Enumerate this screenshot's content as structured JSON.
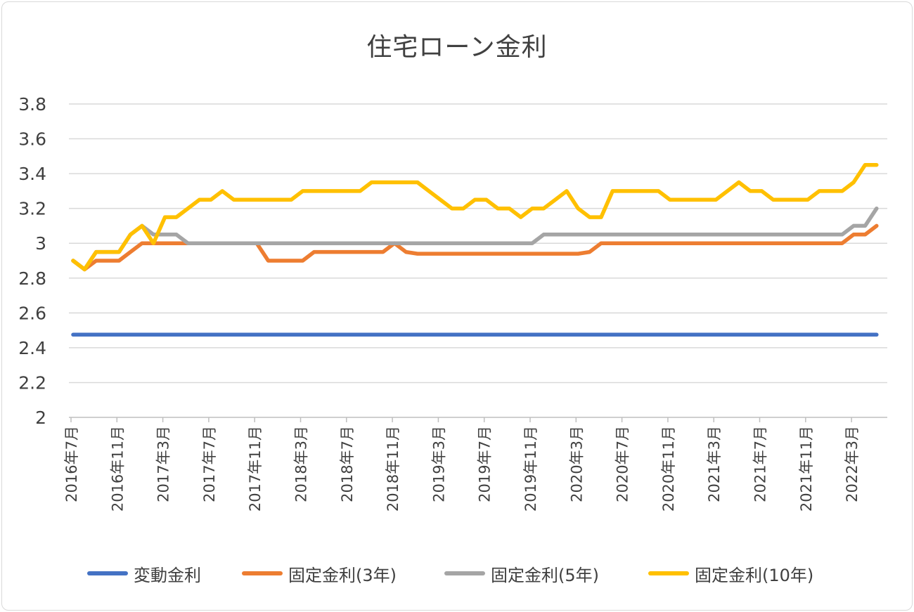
{
  "chart_data": {
    "type": "line",
    "title": "住宅ローン金利",
    "xlabel": "",
    "ylabel": "",
    "ylim": [
      2,
      3.8
    ],
    "yticks": [
      "2",
      "2.2",
      "2.4",
      "2.6",
      "2.8",
      "3",
      "3.2",
      "3.4",
      "3.6",
      "3.8"
    ],
    "grid": true,
    "legend_position": "bottom",
    "x": [
      "2016年7月",
      "2016年8月",
      "2016年9月",
      "2016年10月",
      "2016年11月",
      "2016年12月",
      "2017年1月",
      "2017年2月",
      "2017年3月",
      "2017年4月",
      "2017年5月",
      "2017年6月",
      "2017年7月",
      "2017年8月",
      "2017年9月",
      "2017年10月",
      "2017年11月",
      "2017年12月",
      "2018年1月",
      "2018年2月",
      "2018年3月",
      "2018年4月",
      "2018年5月",
      "2018年6月",
      "2018年7月",
      "2018年8月",
      "2018年9月",
      "2018年10月",
      "2018年11月",
      "2018年12月",
      "2019年1月",
      "2019年2月",
      "2019年3月",
      "2019年4月",
      "2019年5月",
      "2019年6月",
      "2019年7月",
      "2019年8月",
      "2019年9月",
      "2019年10月",
      "2019年11月",
      "2019年12月",
      "2020年1月",
      "2020年2月",
      "2020年3月",
      "2020年4月",
      "2020年5月",
      "2020年6月",
      "2020年7月",
      "2020年8月",
      "2020年9月",
      "2020年10月",
      "2020年11月",
      "2020年12月",
      "2021年1月",
      "2021年2月",
      "2021年3月",
      "2021年4月",
      "2021年5月",
      "2021年6月",
      "2021年7月",
      "2021年8月",
      "2021年9月",
      "2021年10月",
      "2021年11月",
      "2021年12月",
      "2022年1月",
      "2022年2月",
      "2022年3月",
      "2022年4月",
      "2022年5月"
    ],
    "x_tick_labels": [
      "2016年7月",
      "2016年11月",
      "2017年3月",
      "2017年7月",
      "2017年11月",
      "2018年3月",
      "2018年7月",
      "2018年11月",
      "2019年3月",
      "2019年7月",
      "2019年11月",
      "2020年3月",
      "2020年7月",
      "2020年11月",
      "2021年3月",
      "2021年7月",
      "2021年11月",
      "2022年3月"
    ],
    "series": [
      {
        "name": "変動金利",
        "color": "#4472c4",
        "values": [
          2.475,
          2.475,
          2.475,
          2.475,
          2.475,
          2.475,
          2.475,
          2.475,
          2.475,
          2.475,
          2.475,
          2.475,
          2.475,
          2.475,
          2.475,
          2.475,
          2.475,
          2.475,
          2.475,
          2.475,
          2.475,
          2.475,
          2.475,
          2.475,
          2.475,
          2.475,
          2.475,
          2.475,
          2.475,
          2.475,
          2.475,
          2.475,
          2.475,
          2.475,
          2.475,
          2.475,
          2.475,
          2.475,
          2.475,
          2.475,
          2.475,
          2.475,
          2.475,
          2.475,
          2.475,
          2.475,
          2.475,
          2.475,
          2.475,
          2.475,
          2.475,
          2.475,
          2.475,
          2.475,
          2.475,
          2.475,
          2.475,
          2.475,
          2.475,
          2.475,
          2.475,
          2.475,
          2.475,
          2.475,
          2.475,
          2.475,
          2.475,
          2.475,
          2.475,
          2.475,
          2.475
        ]
      },
      {
        "name": "固定金利(3年)",
        "color": "#ed7d31",
        "values": [
          2.9,
          2.85,
          2.9,
          2.9,
          2.9,
          2.95,
          3.0,
          3.0,
          3.0,
          3.0,
          3.0,
          3.0,
          3.0,
          3.0,
          3.0,
          3.0,
          3.0,
          2.9,
          2.9,
          2.9,
          2.9,
          2.95,
          2.95,
          2.95,
          2.95,
          2.95,
          2.95,
          2.95,
          3.0,
          2.95,
          2.94,
          2.94,
          2.94,
          2.94,
          2.94,
          2.94,
          2.94,
          2.94,
          2.94,
          2.94,
          2.94,
          2.94,
          2.94,
          2.94,
          2.94,
          2.95,
          3.0,
          3.0,
          3.0,
          3.0,
          3.0,
          3.0,
          3.0,
          3.0,
          3.0,
          3.0,
          3.0,
          3.0,
          3.0,
          3.0,
          3.0,
          3.0,
          3.0,
          3.0,
          3.0,
          3.0,
          3.0,
          3.0,
          3.05,
          3.05,
          3.1
        ]
      },
      {
        "name": "固定金利(5年)",
        "color": "#a5a5a5",
        "values": [
          2.9,
          2.85,
          2.95,
          2.95,
          2.95,
          3.05,
          3.1,
          3.05,
          3.05,
          3.05,
          3.0,
          3.0,
          3.0,
          3.0,
          3.0,
          3.0,
          3.0,
          3.0,
          3.0,
          3.0,
          3.0,
          3.0,
          3.0,
          3.0,
          3.0,
          3.0,
          3.0,
          3.0,
          3.0,
          3.0,
          3.0,
          3.0,
          3.0,
          3.0,
          3.0,
          3.0,
          3.0,
          3.0,
          3.0,
          3.0,
          3.0,
          3.05,
          3.05,
          3.05,
          3.05,
          3.05,
          3.05,
          3.05,
          3.05,
          3.05,
          3.05,
          3.05,
          3.05,
          3.05,
          3.05,
          3.05,
          3.05,
          3.05,
          3.05,
          3.05,
          3.05,
          3.05,
          3.05,
          3.05,
          3.05,
          3.05,
          3.05,
          3.05,
          3.1,
          3.1,
          3.2
        ]
      },
      {
        "name": "固定金利(10年)",
        "color": "#ffc000",
        "values": [
          2.9,
          2.85,
          2.95,
          2.95,
          2.95,
          3.05,
          3.1,
          3.0,
          3.15,
          3.15,
          3.2,
          3.25,
          3.25,
          3.3,
          3.25,
          3.25,
          3.25,
          3.25,
          3.25,
          3.25,
          3.3,
          3.3,
          3.3,
          3.3,
          3.3,
          3.3,
          3.35,
          3.35,
          3.35,
          3.35,
          3.35,
          3.3,
          3.25,
          3.2,
          3.2,
          3.25,
          3.25,
          3.2,
          3.2,
          3.15,
          3.2,
          3.2,
          3.25,
          3.3,
          3.2,
          3.15,
          3.15,
          3.3,
          3.3,
          3.3,
          3.3,
          3.3,
          3.25,
          3.25,
          3.25,
          3.25,
          3.25,
          3.3,
          3.35,
          3.3,
          3.3,
          3.25,
          3.25,
          3.25,
          3.25,
          3.3,
          3.3,
          3.3,
          3.35,
          3.45,
          3.45
        ]
      }
    ]
  }
}
